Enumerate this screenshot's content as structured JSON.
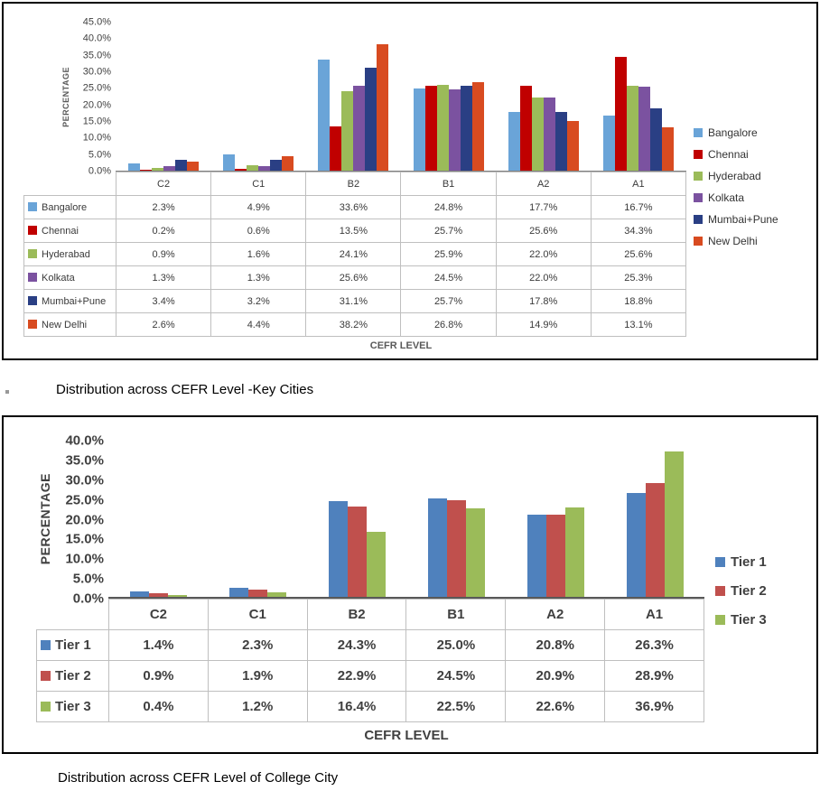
{
  "captions": {
    "key_cities": "Distribution across CEFR Level -Key Cities",
    "college_city": "Distribution across CEFR Level of College City"
  },
  "chart_data": [
    {
      "type": "bar",
      "title": "",
      "xlabel": "CEFR LEVEL",
      "ylabel": "PERCENTAGE",
      "ylim": [
        0,
        45
      ],
      "ytick_step": 5,
      "ytick_labels": [
        "0.0%",
        "5.0%",
        "10.0%",
        "15.0%",
        "20.0%",
        "25.0%",
        "30.0%",
        "35.0%",
        "40.0%",
        "45.0%"
      ],
      "grid": false,
      "legend_position": "right",
      "data_table": true,
      "categories": [
        "C2",
        "C1",
        "B2",
        "B1",
        "A2",
        "A1"
      ],
      "series": [
        {
          "name": "Bangalore",
          "color": "#6AA4D8",
          "values": [
            2.3,
            4.9,
            33.6,
            24.8,
            17.7,
            16.7
          ]
        },
        {
          "name": "Chennai",
          "color": "#C00000",
          "values": [
            0.2,
            0.6,
            13.5,
            25.7,
            25.6,
            34.3
          ]
        },
        {
          "name": "Hyderabad",
          "color": "#9BBB59",
          "values": [
            0.9,
            1.6,
            24.1,
            25.9,
            22.0,
            25.6
          ]
        },
        {
          "name": "Kolkata",
          "color": "#7B52A0",
          "values": [
            1.3,
            1.3,
            25.6,
            24.5,
            22.0,
            25.3
          ]
        },
        {
          "name": "Mumbai+Pune",
          "color": "#2A3F84",
          "values": [
            3.4,
            3.2,
            31.1,
            25.7,
            17.8,
            18.8
          ]
        },
        {
          "name": "New Delhi",
          "color": "#D84B20",
          "values": [
            2.6,
            4.4,
            38.2,
            26.8,
            14.9,
            13.1
          ]
        }
      ]
    },
    {
      "type": "bar",
      "title": "",
      "xlabel": "CEFR LEVEL",
      "ylabel": "PERCENTAGE",
      "ylim": [
        0,
        40
      ],
      "ytick_step": 5,
      "ytick_labels": [
        "0.0%",
        "5.0%",
        "10.0%",
        "15.0%",
        "20.0%",
        "25.0%",
        "30.0%",
        "35.0%",
        "40.0%"
      ],
      "grid": false,
      "legend_position": "right",
      "data_table": true,
      "categories": [
        "C2",
        "C1",
        "B2",
        "B1",
        "A2",
        "A1"
      ],
      "series": [
        {
          "name": "Tier 1",
          "color": "#4F81BD",
          "values": [
            1.4,
            2.3,
            24.3,
            25.0,
            20.8,
            26.3
          ]
        },
        {
          "name": "Tier 2",
          "color": "#C0504D",
          "values": [
            0.9,
            1.9,
            22.9,
            24.5,
            20.9,
            28.9
          ]
        },
        {
          "name": "Tier 3",
          "color": "#9BBB59",
          "values": [
            0.4,
            1.2,
            16.4,
            22.5,
            22.6,
            36.9
          ]
        }
      ]
    }
  ]
}
